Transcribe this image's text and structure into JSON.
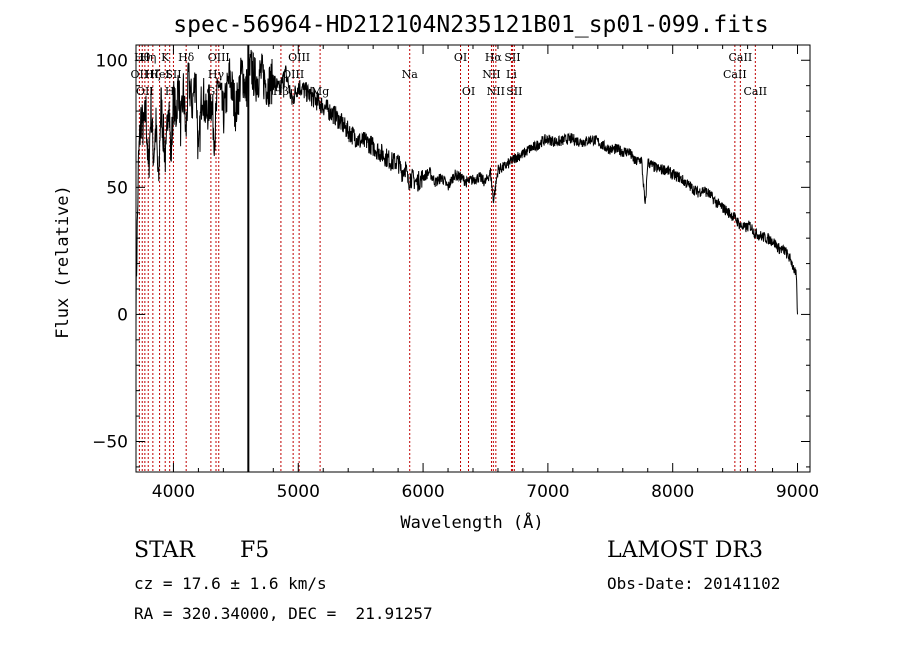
{
  "chart_data": {
    "type": "line",
    "title": "spec-56964-HD212104N235121B01_sp01-099.fits",
    "xlabel": "Wavelength (Å)",
    "ylabel": "Flux (relative)",
    "xlim": [
      3700,
      9100
    ],
    "ylim": [
      -62,
      106
    ],
    "x_ticks": [
      4000,
      5000,
      6000,
      7000,
      8000,
      9000
    ],
    "y_ticks": [
      -50,
      0,
      50,
      100
    ],
    "grid": false,
    "series": [
      {
        "x": [
          3700,
          3720,
          3740,
          3760,
          3780,
          3800,
          3820,
          3840,
          3860,
          3880,
          3900,
          3920,
          3940,
          3960,
          3980,
          4000,
          4020,
          4040,
          4060,
          4080,
          4100,
          4120,
          4150,
          4180,
          4200,
          4230,
          4260,
          4300,
          4330,
          4360,
          4400,
          4450,
          4500,
          4550,
          4580,
          4620,
          4660,
          4700,
          4750,
          4800,
          4850,
          4900,
          4950,
          5000,
          5050,
          5100,
          5150,
          5200,
          5250,
          5300,
          5350,
          5400,
          5450,
          5500,
          5550,
          5600,
          5650,
          5700,
          5750,
          5800,
          5830,
          5860,
          5880,
          5900,
          5950,
          6000,
          6050,
          6100,
          6150,
          6200,
          6250,
          6300,
          6350,
          6400,
          6450,
          6500,
          6540,
          6563,
          6580,
          6600,
          6650,
          6700,
          6750,
          6800,
          6850,
          6900,
          6950,
          7000,
          7050,
          7100,
          7150,
          7200,
          7250,
          7300,
          7350,
          7400,
          7450,
          7500,
          7550,
          7600,
          7650,
          7700,
          7750,
          7780,
          7800,
          7850,
          7900,
          7950,
          8000,
          8050,
          8100,
          8150,
          8200,
          8250,
          8300,
          8350,
          8400,
          8450,
          8500,
          8540,
          8580,
          8620,
          8660,
          8700,
          8750,
          8800,
          8850,
          8900,
          8950,
          8990,
          9000
        ],
        "values": [
          5,
          60,
          78,
          72,
          80,
          55,
          82,
          62,
          74,
          50,
          84,
          70,
          60,
          88,
          62,
          85,
          78,
          92,
          72,
          88,
          70,
          93,
          82,
          95,
          60,
          90,
          78,
          85,
          70,
          92,
          78,
          94,
          80,
          96,
          88,
          97,
          92,
          95,
          90,
          92,
          88,
          95,
          84,
          90,
          88,
          86,
          84,
          82,
          80,
          78,
          75,
          72,
          70,
          68,
          68,
          66,
          64,
          62,
          60,
          60,
          56,
          58,
          52,
          54,
          52,
          54,
          56,
          52,
          54,
          50,
          55,
          54,
          52,
          53,
          54,
          52,
          56,
          45,
          50,
          57,
          58,
          60,
          62,
          63,
          65,
          66,
          68,
          69,
          68,
          68,
          69,
          69,
          68,
          68,
          69,
          68,
          66,
          65,
          65,
          64,
          64,
          60,
          61,
          42,
          60,
          58,
          57,
          57,
          55,
          54,
          52,
          50,
          48,
          49,
          47,
          44,
          42,
          40,
          38,
          35,
          34,
          35,
          32,
          31,
          30,
          29,
          26,
          25,
          21,
          15,
          0
        ]
      }
    ],
    "line_markers": [
      {
        "wl": 3727,
        "label": "OII",
        "row": 2
      },
      {
        "wl": 3750,
        "label": "Hθ",
        "row": 1
      },
      {
        "wl": 3771,
        "label": "OII",
        "row": 3
      },
      {
        "wl": 3798,
        "label": "Hη",
        "row": 1
      },
      {
        "wl": 3835,
        "label": "Hζ",
        "row": 2
      },
      {
        "wl": 3889,
        "label": "HeI",
        "row": 2
      },
      {
        "wl": 3934,
        "label": "K",
        "row": 1
      },
      {
        "wl": 3970,
        "label": "H",
        "row": 3
      },
      {
        "wl": 4000,
        "label": "SII",
        "row": 2
      },
      {
        "wl": 4102,
        "label": "Hδ",
        "row": 1
      },
      {
        "wl": 4300,
        "label": "G",
        "row": 3
      },
      {
        "wl": 4341,
        "label": "Hγ",
        "row": 2
      },
      {
        "wl": 4363,
        "label": "OIII",
        "row": 1
      },
      {
        "wl": 4861,
        "label": "Hβ",
        "row": 3
      },
      {
        "wl": 4959,
        "label": "OIII",
        "row": 2
      },
      {
        "wl": 5007,
        "label": "OIII",
        "row": 1
      },
      {
        "wl": 5175,
        "label": "Mg",
        "row": 3
      },
      {
        "wl": 5893,
        "label": "Na",
        "row": 2
      },
      {
        "wl": 6300,
        "label": "OI",
        "row": 1
      },
      {
        "wl": 6364,
        "label": "OI",
        "row": 3
      },
      {
        "wl": 6548,
        "label": "NII",
        "row": 2
      },
      {
        "wl": 6563,
        "label": "Hα",
        "row": 1
      },
      {
        "wl": 6583,
        "label": "NII",
        "row": 3
      },
      {
        "wl": 6708,
        "label": "Li",
        "row": 2
      },
      {
        "wl": 6716,
        "label": "SII",
        "row": 1
      },
      {
        "wl": 6731,
        "label": "SII",
        "row": 3
      },
      {
        "wl": 8498,
        "label": "CaII",
        "row": 2
      },
      {
        "wl": 8542,
        "label": "CaII",
        "row": 1
      },
      {
        "wl": 8662,
        "label": "CaII",
        "row": 3
      }
    ],
    "vertical_line_wl": 4600,
    "colors": {
      "spectrum": "#000000",
      "markers": "#c00000",
      "axes": "#000000"
    }
  },
  "info": {
    "object_class": "STAR",
    "subclass": "F5",
    "survey": "LAMOST DR3",
    "cz": "cz = 17.6 ± 1.6 km/s",
    "obs_date": "Obs-Date: 20141102",
    "coords": "RA = 320.34000, DEC =  21.91257"
  }
}
